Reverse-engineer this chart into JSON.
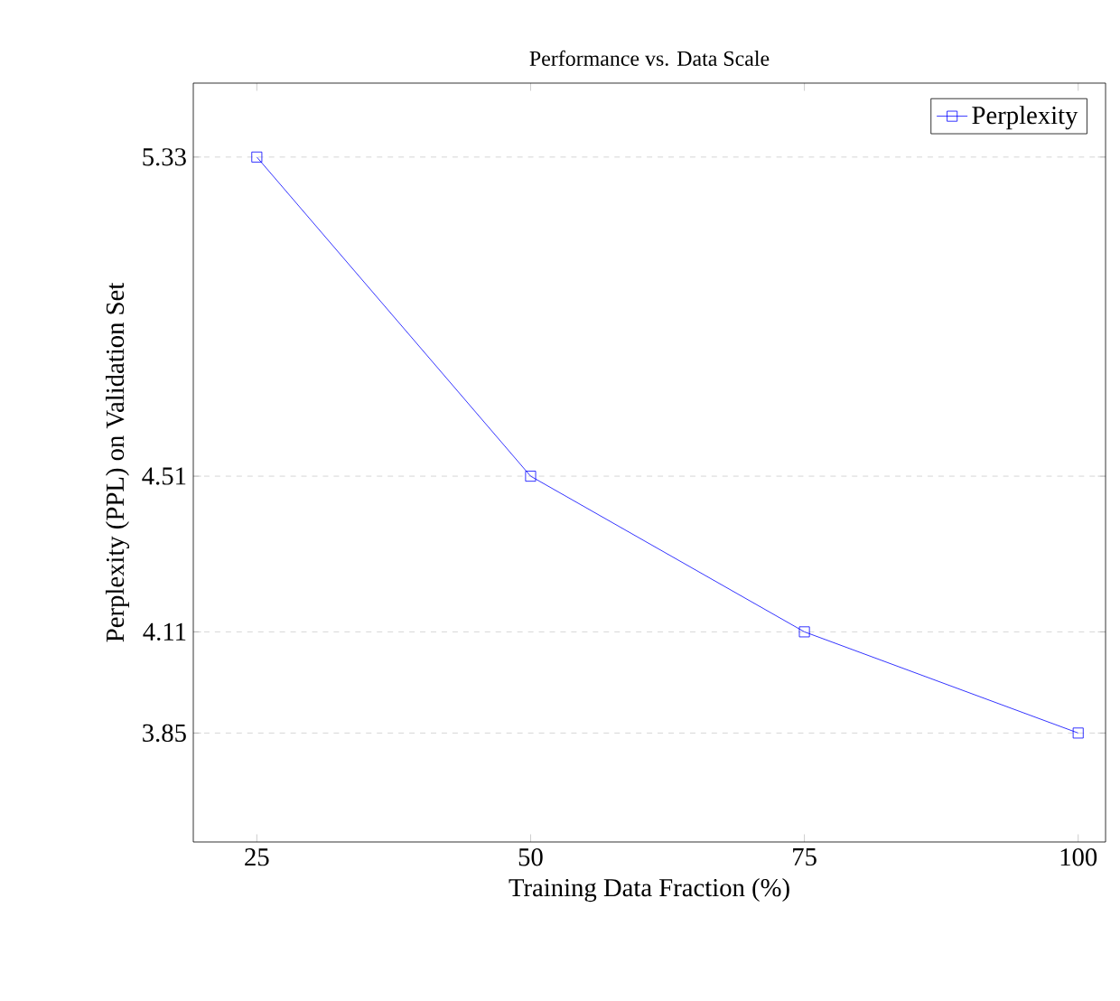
{
  "chart_data": {
    "type": "line",
    "title": "Performance vs. Data Scale",
    "xlabel": "Training Data Fraction (%)",
    "ylabel": "Perplexity (PPL) on Validation Set",
    "x": [
      25,
      50,
      75,
      100
    ],
    "series": [
      {
        "name": "Perplexity",
        "color": "#0000ff",
        "values": [
          5.33,
          4.51,
          4.11,
          3.85
        ]
      }
    ],
    "xlim": [
      19.2,
      102.5
    ],
    "xticks": [
      25,
      50,
      75,
      100
    ],
    "ylim": [
      3.57,
      5.52
    ],
    "yticks": [
      3.85,
      4.11,
      4.51,
      5.33
    ],
    "grid": "y",
    "legend": "top right",
    "marker": "square",
    "line_style": "solid"
  }
}
